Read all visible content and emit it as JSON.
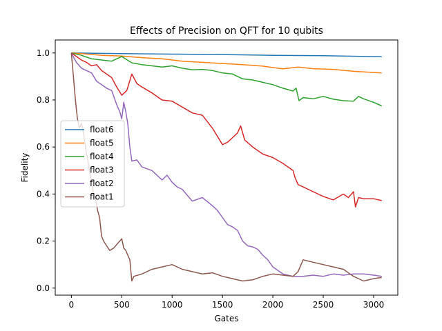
{
  "chart_data": {
    "type": "line",
    "title": "Effects of Precision on QFT for 10 qubits",
    "xlabel": "Gates",
    "ylabel": "Fidelity",
    "xlim": [
      -160,
      3240
    ],
    "ylim": [
      -0.03,
      1.055
    ],
    "xticks": [
      0,
      500,
      1000,
      1500,
      2000,
      2500,
      3000
    ],
    "yticks": [
      0.0,
      0.2,
      0.4,
      0.6,
      0.8,
      1.0
    ],
    "xtick_labels": [
      "0",
      "500",
      "1000",
      "1500",
      "2000",
      "2500",
      "3000"
    ],
    "ytick_labels": [
      "0.0",
      "0.2",
      "0.4",
      "0.6",
      "0.8",
      "1.0"
    ],
    "grid": false,
    "legend_position": "center-left",
    "series": [
      {
        "name": "float6",
        "color": "#1f77b4",
        "x": [
          0,
          500,
          1000,
          1500,
          2000,
          2500,
          3080
        ],
        "y": [
          1.0,
          0.997,
          0.995,
          0.993,
          0.99,
          0.988,
          0.984
        ]
      },
      {
        "name": "float5",
        "color": "#ff7f0e",
        "x": [
          0,
          100,
          300,
          500,
          700,
          900,
          1100,
          1300,
          1500,
          1700,
          1900,
          2100,
          2250,
          2400,
          2600,
          2800,
          3080
        ],
        "y": [
          1.0,
          0.997,
          0.99,
          0.987,
          0.98,
          0.975,
          0.965,
          0.96,
          0.955,
          0.95,
          0.944,
          0.932,
          0.94,
          0.933,
          0.93,
          0.922,
          0.915
        ]
      },
      {
        "name": "float4",
        "color": "#2ca02c",
        "x": [
          0,
          100,
          200,
          300,
          400,
          500,
          600,
          700,
          800,
          900,
          1000,
          1100,
          1200,
          1300,
          1400,
          1500,
          1600,
          1700,
          1800,
          1900,
          2000,
          2100,
          2200,
          2230,
          2260,
          2300,
          2400,
          2500,
          2600,
          2700,
          2800,
          2850,
          2900,
          3000,
          3080
        ],
        "y": [
          1.0,
          0.99,
          0.975,
          0.97,
          0.965,
          0.985,
          0.958,
          0.95,
          0.945,
          0.94,
          0.945,
          0.935,
          0.928,
          0.93,
          0.925,
          0.915,
          0.91,
          0.89,
          0.885,
          0.875,
          0.865,
          0.85,
          0.838,
          0.85,
          0.797,
          0.81,
          0.805,
          0.815,
          0.803,
          0.797,
          0.795,
          0.815,
          0.805,
          0.79,
          0.775
        ]
      },
      {
        "name": "float3",
        "color": "#d62728",
        "x": [
          0,
          50,
          100,
          150,
          200,
          250,
          300,
          350,
          400,
          450,
          500,
          550,
          600,
          650,
          700,
          800,
          900,
          1000,
          1100,
          1200,
          1300,
          1400,
          1500,
          1550,
          1600,
          1650,
          1680,
          1720,
          1800,
          1900,
          2000,
          2100,
          2200,
          2220,
          2250,
          2300,
          2400,
          2500,
          2600,
          2700,
          2750,
          2800,
          2820,
          2850,
          2900,
          3000,
          3080
        ],
        "y": [
          1.0,
          0.985,
          0.97,
          0.96,
          0.945,
          0.95,
          0.925,
          0.91,
          0.895,
          0.855,
          0.82,
          0.84,
          0.91,
          0.87,
          0.855,
          0.83,
          0.8,
          0.795,
          0.77,
          0.745,
          0.735,
          0.68,
          0.61,
          0.62,
          0.64,
          0.66,
          0.69,
          0.63,
          0.6,
          0.57,
          0.555,
          0.53,
          0.5,
          0.47,
          0.44,
          0.43,
          0.41,
          0.39,
          0.375,
          0.4,
          0.385,
          0.41,
          0.345,
          0.385,
          0.38,
          0.38,
          0.372
        ]
      },
      {
        "name": "float2",
        "color": "#9467bd",
        "x": [
          0,
          50,
          100,
          150,
          200,
          250,
          300,
          350,
          400,
          450,
          480,
          500,
          520,
          540,
          560,
          580,
          600,
          650,
          700,
          800,
          900,
          950,
          1000,
          1050,
          1100,
          1150,
          1200,
          1300,
          1400,
          1450,
          1500,
          1550,
          1600,
          1650,
          1700,
          1750,
          1800,
          1850,
          1900,
          1950,
          2000,
          2100,
          2200,
          2300,
          2400,
          2500,
          2600,
          2700,
          2800,
          2900,
          3000,
          3080
        ],
        "y": [
          1.0,
          0.96,
          0.935,
          0.925,
          0.915,
          0.88,
          0.865,
          0.85,
          0.84,
          0.78,
          0.75,
          0.72,
          0.79,
          0.75,
          0.7,
          0.6,
          0.54,
          0.545,
          0.515,
          0.5,
          0.46,
          0.48,
          0.45,
          0.43,
          0.42,
          0.395,
          0.37,
          0.385,
          0.35,
          0.33,
          0.3,
          0.27,
          0.26,
          0.245,
          0.2,
          0.18,
          0.175,
          0.165,
          0.14,
          0.12,
          0.09,
          0.06,
          0.05,
          0.05,
          0.055,
          0.05,
          0.06,
          0.055,
          0.06,
          0.06,
          0.055,
          0.05
        ]
      },
      {
        "name": "float1",
        "color": "#8c564b",
        "x": [
          0,
          20,
          40,
          60,
          80,
          100,
          120,
          140,
          160,
          180,
          200,
          220,
          240,
          260,
          280,
          300,
          320,
          350,
          380,
          420,
          460,
          500,
          520,
          540,
          560,
          580,
          600,
          620,
          700,
          800,
          900,
          1000,
          1100,
          1200,
          1300,
          1400,
          1500,
          1600,
          1700,
          1800,
          1900,
          2000,
          2100,
          2200,
          2250,
          2300,
          2400,
          2500,
          2600,
          2700,
          2800,
          2900,
          3000,
          3080
        ],
        "y": [
          1.0,
          0.9,
          0.8,
          0.72,
          0.68,
          0.7,
          0.66,
          0.6,
          0.55,
          0.5,
          0.45,
          0.4,
          0.38,
          0.33,
          0.3,
          0.22,
          0.2,
          0.18,
          0.16,
          0.17,
          0.19,
          0.21,
          0.17,
          0.16,
          0.14,
          0.12,
          0.03,
          0.05,
          0.06,
          0.08,
          0.09,
          0.1,
          0.08,
          0.07,
          0.06,
          0.065,
          0.05,
          0.04,
          0.03,
          0.035,
          0.05,
          0.06,
          0.055,
          0.05,
          0.07,
          0.12,
          0.11,
          0.1,
          0.09,
          0.08,
          0.05,
          0.03,
          0.04,
          0.045
        ]
      }
    ]
  }
}
